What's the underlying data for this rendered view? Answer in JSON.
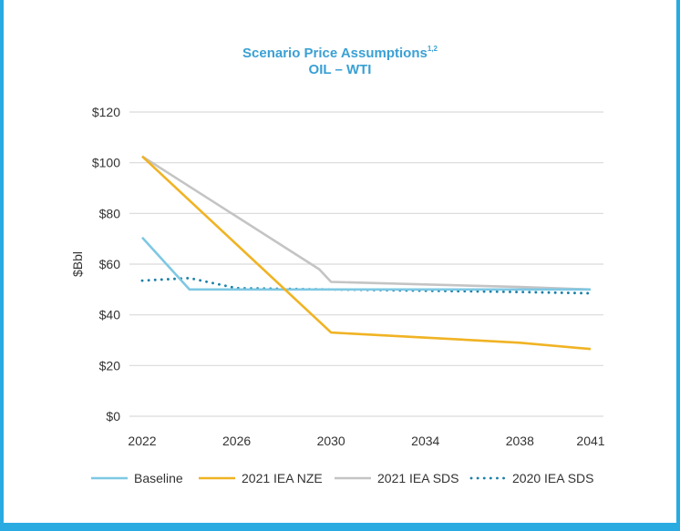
{
  "chart_data": {
    "type": "line",
    "title": "Scenario Price Assumptions",
    "title_superscript": "1,2",
    "subtitle": "OIL – WTI",
    "ylabel": "$Bbl",
    "xlabel": "",
    "ylim": [
      0,
      120
    ],
    "xlim": [
      2022,
      2041
    ],
    "grid": true,
    "legend_position": "bottom",
    "y_ticks": [
      {
        "value": 0,
        "label": "$0"
      },
      {
        "value": 20,
        "label": "$20"
      },
      {
        "value": 40,
        "label": "$40"
      },
      {
        "value": 60,
        "label": "$60"
      },
      {
        "value": 80,
        "label": "$80"
      },
      {
        "value": 100,
        "label": "$100"
      },
      {
        "value": 120,
        "label": "$120"
      }
    ],
    "x_ticks": [
      {
        "value": 2022,
        "label": "2022"
      },
      {
        "value": 2026,
        "label": "2026"
      },
      {
        "value": 2030,
        "label": "2030"
      },
      {
        "value": 2034,
        "label": "2034"
      },
      {
        "value": 2038,
        "label": "2038"
      },
      {
        "value": 2041,
        "label": "2041"
      }
    ],
    "series": [
      {
        "name": "Baseline",
        "color": "#7ec8e3",
        "style": "solid",
        "x": [
          2022,
          2024,
          2026,
          2030,
          2034,
          2038,
          2041
        ],
        "values": [
          70.5,
          50,
          50,
          50,
          50,
          50,
          50
        ]
      },
      {
        "name": "2021 IEA NZE",
        "color": "#f0b323",
        "style": "solid",
        "x": [
          2022,
          2030,
          2034,
          2038,
          2041
        ],
        "values": [
          102.5,
          33,
          31,
          29,
          26.5
        ]
      },
      {
        "name": "2021 IEA SDS",
        "color": "#c4c4c4",
        "style": "solid",
        "x": [
          2022,
          2029.5,
          2030,
          2034,
          2038,
          2041
        ],
        "values": [
          102.5,
          58,
          53,
          52,
          51,
          50
        ]
      },
      {
        "name": "2020 IEA SDS",
        "color": "#1a7fa6",
        "style": "dotted",
        "x": [
          2022,
          2024,
          2026,
          2030,
          2034,
          2038,
          2041
        ],
        "values": [
          53.5,
          54.5,
          50.5,
          50,
          49.5,
          49,
          48.5
        ]
      }
    ]
  }
}
